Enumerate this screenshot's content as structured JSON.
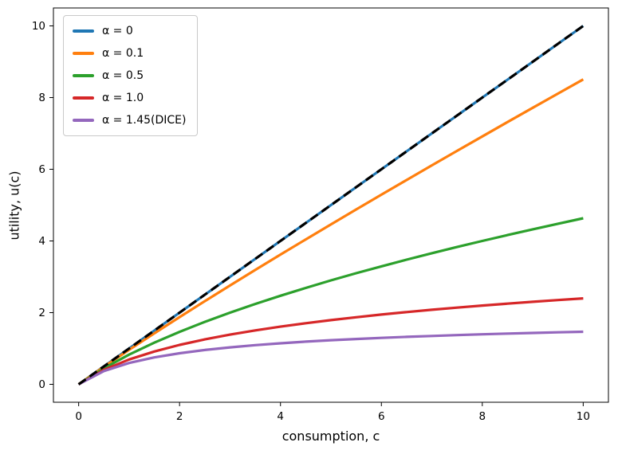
{
  "chart_data": {
    "type": "line",
    "title": "",
    "xlabel": "consumption, c",
    "ylabel": "utility, u(c)",
    "xlim": [
      -0.5,
      10.5
    ],
    "ylim": [
      -0.5,
      10.5
    ],
    "xticks": [
      0,
      2,
      4,
      6,
      8,
      10
    ],
    "yticks": [
      0,
      2,
      4,
      6,
      8,
      10
    ],
    "grid": false,
    "legend_position": "upper-left",
    "x": [
      0,
      0.5,
      1,
      1.5,
      2,
      2.5,
      3,
      3.5,
      4,
      4.5,
      5,
      5.5,
      6,
      6.5,
      7,
      7.5,
      8,
      8.5,
      9,
      9.5,
      10
    ],
    "series": [
      {
        "id": "alpha-0",
        "name": "α = 0",
        "color": "#1f77b4",
        "style": "solid",
        "legend": true,
        "values": [
          0,
          0.5,
          1,
          1.5,
          2,
          2.5,
          3,
          3.5,
          4,
          4.5,
          5,
          5.5,
          6,
          6.5,
          7,
          7.5,
          8,
          8.5,
          9,
          9.5,
          10
        ]
      },
      {
        "id": "alpha-0-1",
        "name": "α = 0.1",
        "color": "#ff7f0e",
        "style": "solid",
        "legend": true,
        "values": [
          0,
          0.489,
          0.962,
          1.423,
          1.875,
          2.32,
          2.758,
          3.191,
          3.619,
          4.042,
          4.462,
          4.878,
          5.291,
          5.701,
          6.109,
          6.514,
          6.916,
          7.317,
          7.715,
          8.111,
          8.506
        ]
      },
      {
        "id": "alpha-0-5",
        "name": "α = 0.5",
        "color": "#2ca02c",
        "style": "solid",
        "legend": true,
        "values": [
          0,
          0.449,
          0.828,
          1.162,
          1.464,
          1.742,
          2,
          2.243,
          2.472,
          2.69,
          2.899,
          3.099,
          3.292,
          3.477,
          3.657,
          3.831,
          4,
          4.164,
          4.325,
          4.481,
          4.633
        ]
      },
      {
        "id": "alpha-1-0",
        "name": "α = 1.0",
        "color": "#d62728",
        "style": "solid",
        "legend": true,
        "values": [
          0,
          0.405,
          0.693,
          0.916,
          1.099,
          1.253,
          1.386,
          1.504,
          1.609,
          1.705,
          1.792,
          1.872,
          1.946,
          2.015,
          2.079,
          2.14,
          2.197,
          2.251,
          2.303,
          2.351,
          2.398
        ]
      },
      {
        "id": "alpha-1-45-dice",
        "name": "α = 1.45(DICE)",
        "color": "#9467bd",
        "style": "solid",
        "legend": true,
        "values": [
          0,
          0.371,
          0.595,
          0.751,
          0.867,
          0.958,
          1.031,
          1.093,
          1.145,
          1.19,
          1.23,
          1.265,
          1.296,
          1.325,
          1.35,
          1.374,
          1.395,
          1.415,
          1.434,
          1.451,
          1.467
        ]
      },
      {
        "id": "reference-dashed",
        "name": "",
        "color": "#000000",
        "style": "dashed",
        "legend": false,
        "values": [
          0,
          0.5,
          1,
          1.5,
          2,
          2.5,
          3,
          3.5,
          4,
          4.5,
          5,
          5.5,
          6,
          6.5,
          7,
          7.5,
          8,
          8.5,
          9,
          9.5,
          10
        ]
      }
    ]
  }
}
